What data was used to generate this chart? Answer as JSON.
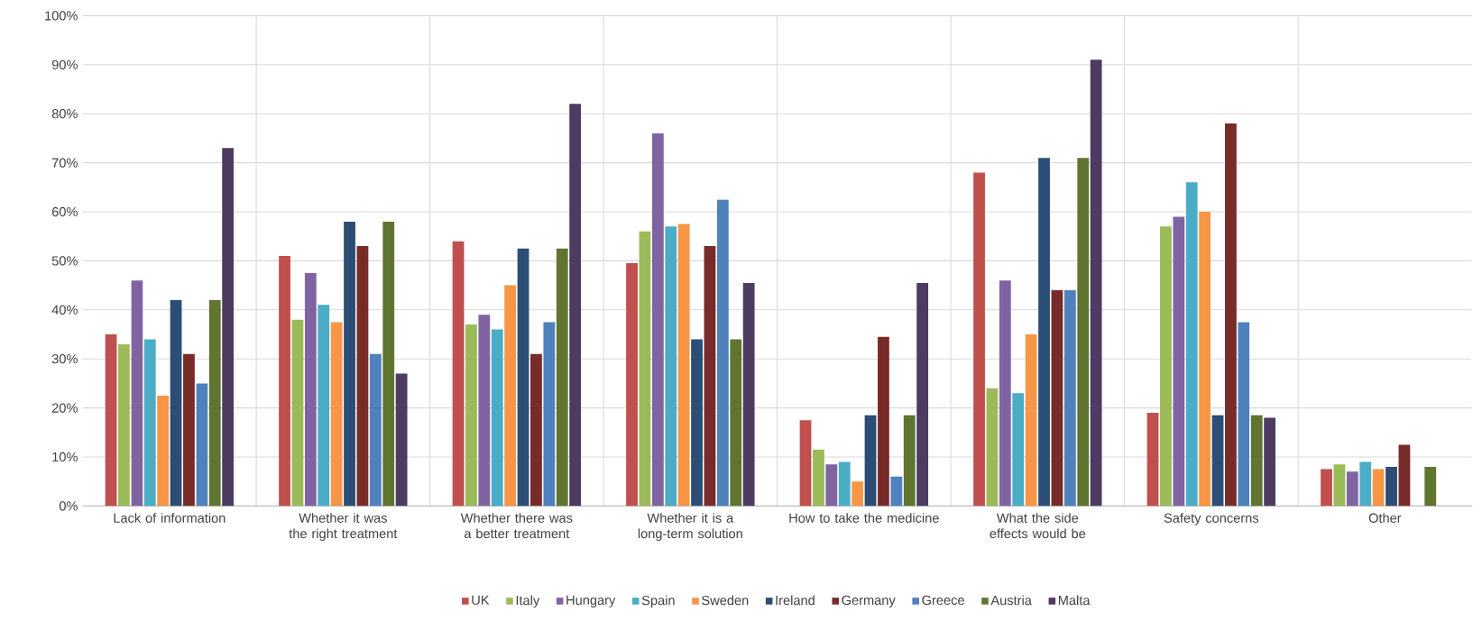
{
  "chart_data": {
    "type": "bar",
    "categories": [
      "Lack of information",
      "Whether it was the right treatment",
      "Whether there was a better treatment",
      "Whether it is a long-term solution",
      "How to take the medicine",
      "What the side effects would be",
      "Safety concerns",
      "Other"
    ],
    "series": [
      {
        "name": "UK",
        "color": "#c0504d",
        "values": [
          35,
          51,
          54,
          49.5,
          17.5,
          68,
          19,
          7.5
        ]
      },
      {
        "name": "Italy",
        "color": "#9bbb59",
        "values": [
          33,
          38,
          37,
          56,
          11.5,
          24,
          57,
          8.5
        ]
      },
      {
        "name": "Hungary",
        "color": "#8064a2",
        "values": [
          46,
          47.5,
          39,
          76,
          8.5,
          46,
          59,
          7
        ]
      },
      {
        "name": "Spain",
        "color": "#4bacc6",
        "values": [
          34,
          41,
          36,
          57,
          9,
          23,
          66,
          9
        ]
      },
      {
        "name": "Sweden",
        "color": "#f79646",
        "values": [
          22.5,
          37.5,
          45,
          57.5,
          5,
          35,
          60,
          7.5
        ]
      },
      {
        "name": "Ireland",
        "color": "#2c4d75",
        "values": [
          42,
          58,
          52.5,
          34,
          18.5,
          71,
          18.5,
          8
        ]
      },
      {
        "name": "Germany",
        "color": "#772c2a",
        "values": [
          31,
          53,
          31,
          53,
          34.5,
          44,
          78,
          12.5
        ]
      },
      {
        "name": "Greece",
        "color": "#4f81bd",
        "values": [
          25,
          31,
          37.5,
          62.5,
          6,
          44,
          37.5,
          null
        ]
      },
      {
        "name": "Austria",
        "color": "#5f7530",
        "values": [
          42,
          58,
          52.5,
          34,
          18.5,
          71,
          18.5,
          8
        ]
      },
      {
        "name": "Malta",
        "color": "#4d3b62",
        "values": [
          73,
          27,
          82,
          45.5,
          45.5,
          91,
          18,
          null
        ]
      }
    ],
    "ylim": [
      0,
      100
    ],
    "yticks": [
      {
        "value": 0,
        "label": "0%"
      },
      {
        "value": 10,
        "label": "10%"
      },
      {
        "value": 20,
        "label": "20%"
      },
      {
        "value": 30,
        "label": "30%"
      },
      {
        "value": 40,
        "label": "40%"
      },
      {
        "value": 50,
        "label": "50%"
      },
      {
        "value": 60,
        "label": "60%"
      },
      {
        "value": 70,
        "label": "70%"
      },
      {
        "value": 80,
        "label": "80%"
      },
      {
        "value": 90,
        "label": "90%"
      },
      {
        "value": 100,
        "label": "100%"
      }
    ],
    "grid": true,
    "legend": "bottom"
  }
}
